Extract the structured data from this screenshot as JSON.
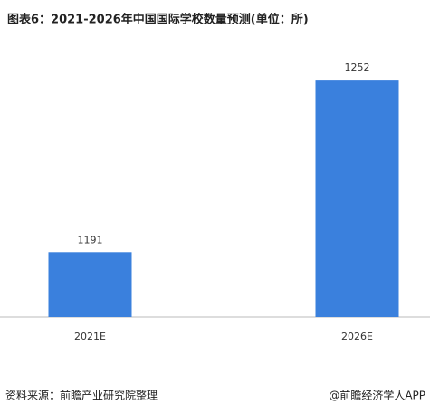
{
  "chart_data": {
    "type": "bar",
    "title": "图表6：2021-2026年中国国际学校数量预测(单位：所)",
    "categories": [
      "2021E",
      "2026E"
    ],
    "values": [
      1191,
      1252
    ],
    "color": "#3a80dd",
    "ylim": [
      1168,
      1270
    ],
    "source": "资料来源：前瞻产业研究院整理",
    "credit": "@前瞻经济学人APP"
  }
}
